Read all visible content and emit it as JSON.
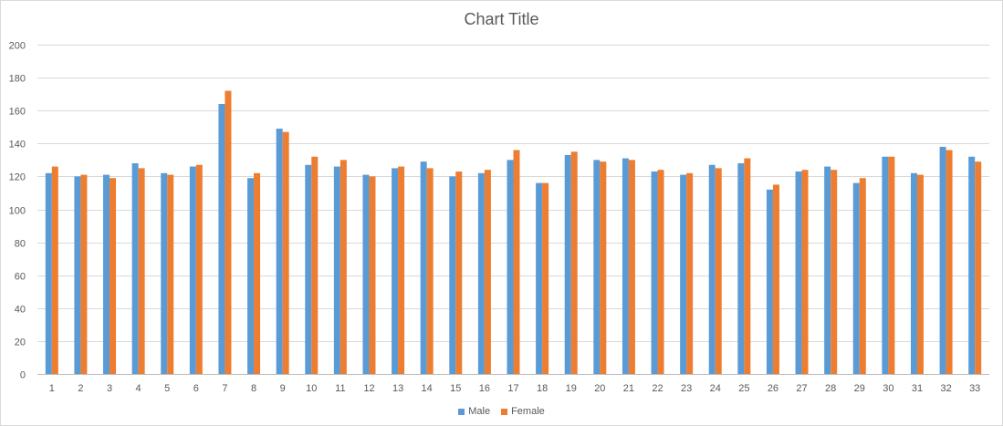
{
  "chart_data": {
    "type": "bar",
    "title": "Chart Title",
    "xlabel": "",
    "ylabel": "",
    "ylim": [
      0,
      200
    ],
    "yticks": [
      0,
      20,
      40,
      60,
      80,
      100,
      120,
      140,
      160,
      180,
      200
    ],
    "grid": true,
    "legend_position": "bottom",
    "categories": [
      "1",
      "2",
      "3",
      "4",
      "5",
      "6",
      "7",
      "8",
      "9",
      "10",
      "11",
      "12",
      "13",
      "14",
      "15",
      "16",
      "17",
      "18",
      "19",
      "20",
      "21",
      "22",
      "23",
      "24",
      "25",
      "26",
      "27",
      "28",
      "29",
      "30",
      "31",
      "32",
      "33"
    ],
    "series": [
      {
        "name": "Male",
        "color": "#5b9bd5",
        "values": [
          122,
          120,
          121,
          128,
          122,
          126,
          164,
          119,
          149,
          127,
          126,
          121,
          125,
          129,
          120,
          122,
          130,
          116,
          133,
          130,
          131,
          123,
          121,
          127,
          128,
          112,
          123,
          126,
          116,
          132,
          122,
          138,
          132
        ]
      },
      {
        "name": "Female",
        "color": "#ed7d31",
        "values": [
          126,
          121,
          119,
          125,
          121,
          127,
          172,
          122,
          147,
          132,
          130,
          120,
          126,
          125,
          123,
          124,
          136,
          116,
          135,
          129,
          130,
          124,
          122,
          125,
          131,
          115,
          124,
          124,
          119,
          132,
          121,
          136,
          129
        ]
      }
    ]
  }
}
